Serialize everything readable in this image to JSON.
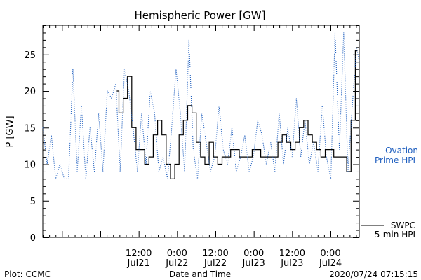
{
  "chart_data": {
    "type": "line",
    "title": "Hemispheric Power [GW]",
    "xlabel": "Date and Time",
    "ylabel": "P [GW]",
    "ylim": [
      0,
      29
    ],
    "xlim": [
      "2020-07-20 06:00",
      "2020-07-24 09:00"
    ],
    "yticks": [
      0,
      5,
      10,
      15,
      20,
      25
    ],
    "xticks": [
      {
        "t": "2020-07-21 12:00",
        "line1": "12:00",
        "line2": "Jul21"
      },
      {
        "t": "2020-07-22 00:00",
        "line1": "0:00",
        "line2": "Jul22"
      },
      {
        "t": "2020-07-22 12:00",
        "line1": "12:00",
        "line2": "Jul22"
      },
      {
        "t": "2020-07-23 00:00",
        "line1": "0:00",
        "line2": "Jul23"
      },
      {
        "t": "2020-07-23 12:00",
        "line1": "12:00",
        "line2": "Jul23"
      },
      {
        "t": "2020-07-24 00:00",
        "line1": "0:00",
        "line2": "Jul24"
      }
    ],
    "series": [
      {
        "name": "SWPC 5-min HPI",
        "color": "#000000",
        "style": "solid",
        "x": [
          "2020-07-21 05:08",
          "2020-07-21 06:29",
          "2020-07-21 07:49",
          "2020-07-21 09:10",
          "2020-07-21 10:31",
          "2020-07-21 11:51",
          "2020-07-21 13:12",
          "2020-07-21 14:33",
          "2020-07-21 15:53",
          "2020-07-21 17:14",
          "2020-07-21 18:35",
          "2020-07-21 19:55",
          "2020-07-21 21:16",
          "2020-07-21 22:37",
          "2020-07-21 23:58",
          "2020-07-22 01:18",
          "2020-07-22 02:39",
          "2020-07-22 04:00",
          "2020-07-22 05:20",
          "2020-07-22 06:41",
          "2020-07-22 08:02",
          "2020-07-22 09:22",
          "2020-07-22 10:43",
          "2020-07-22 12:04",
          "2020-07-22 13:24",
          "2020-07-22 14:45",
          "2020-07-22 16:06",
          "2020-07-22 17:26",
          "2020-07-22 18:47",
          "2020-07-22 20:08",
          "2020-07-22 21:28",
          "2020-07-22 22:49",
          "2020-07-23 00:10",
          "2020-07-23 01:31",
          "2020-07-23 02:51",
          "2020-07-23 04:12",
          "2020-07-23 05:33",
          "2020-07-23 06:53",
          "2020-07-23 08:14",
          "2020-07-23 09:35",
          "2020-07-23 10:55",
          "2020-07-23 12:16",
          "2020-07-23 13:37",
          "2020-07-23 14:57",
          "2020-07-23 16:18",
          "2020-07-23 17:39",
          "2020-07-23 18:59",
          "2020-07-23 20:20",
          "2020-07-23 21:41",
          "2020-07-23 23:01",
          "2020-07-24 00:22",
          "2020-07-24 01:43",
          "2020-07-24 03:04",
          "2020-07-24 04:24",
          "2020-07-24 05:45",
          "2020-07-24 07:06",
          "2020-07-24 08:26"
        ],
        "y": [
          20,
          17,
          19,
          22,
          15,
          12,
          12,
          10,
          11,
          14,
          16,
          14,
          10,
          8,
          10,
          14,
          16,
          18,
          17,
          13,
          11,
          10,
          13,
          11,
          10,
          11,
          11,
          12,
          12,
          11,
          11,
          11,
          12,
          12,
          11,
          11,
          11,
          11,
          13,
          14,
          13,
          12,
          13,
          15,
          16,
          14,
          13,
          12,
          11,
          12,
          12,
          11,
          11,
          11,
          9,
          16,
          25.5
        ]
      },
      {
        "name": "Ovation Prime HPI",
        "color": "#1f5fbf",
        "style": "dotted",
        "x": [
          "2020-07-20 06:00",
          "2020-07-20 07:21",
          "2020-07-20 08:41",
          "2020-07-20 10:02",
          "2020-07-20 11:23",
          "2020-07-20 12:43",
          "2020-07-20 14:04",
          "2020-07-20 15:25",
          "2020-07-20 16:45",
          "2020-07-20 18:06",
          "2020-07-20 19:27",
          "2020-07-20 20:47",
          "2020-07-20 22:08",
          "2020-07-20 23:29",
          "2020-07-21 00:49",
          "2020-07-21 02:10",
          "2020-07-21 03:31",
          "2020-07-21 04:51",
          "2020-07-21 06:12",
          "2020-07-21 07:33",
          "2020-07-21 08:53",
          "2020-07-21 10:14",
          "2020-07-21 11:35",
          "2020-07-21 12:55",
          "2020-07-21 14:16",
          "2020-07-21 15:37",
          "2020-07-21 16:58",
          "2020-07-21 18:18",
          "2020-07-21 19:39",
          "2020-07-21 21:00",
          "2020-07-21 22:20",
          "2020-07-21 23:41",
          "2020-07-22 01:02",
          "2020-07-22 02:22",
          "2020-07-22 03:43",
          "2020-07-22 05:04",
          "2020-07-22 06:24",
          "2020-07-22 07:45",
          "2020-07-22 09:06",
          "2020-07-22 10:26",
          "2020-07-22 11:47",
          "2020-07-22 13:08",
          "2020-07-22 14:28",
          "2020-07-22 15:49",
          "2020-07-22 17:10",
          "2020-07-22 18:31",
          "2020-07-22 19:51",
          "2020-07-22 21:12",
          "2020-07-22 22:33",
          "2020-07-22 23:53",
          "2020-07-23 01:14",
          "2020-07-23 02:35",
          "2020-07-23 03:55",
          "2020-07-23 05:16",
          "2020-07-23 06:37",
          "2020-07-23 07:57",
          "2020-07-23 09:18",
          "2020-07-23 10:39",
          "2020-07-23 11:59",
          "2020-07-23 13:20",
          "2020-07-23 14:41",
          "2020-07-23 16:01",
          "2020-07-23 17:22",
          "2020-07-23 18:43",
          "2020-07-23 20:04",
          "2020-07-23 21:24",
          "2020-07-23 22:45",
          "2020-07-24 00:06",
          "2020-07-24 01:26",
          "2020-07-24 02:47",
          "2020-07-24 04:08",
          "2020-07-24 05:28",
          "2020-07-24 06:49",
          "2020-07-24 08:10",
          "2020-07-24 09:00"
        ],
        "y": [
          15,
          10,
          14,
          8,
          10,
          8,
          8,
          23,
          9,
          18,
          8,
          15,
          9,
          17,
          9,
          20,
          19,
          21,
          9,
          23,
          20,
          15,
          9,
          17,
          10,
          20,
          17,
          9,
          11,
          8,
          15,
          23,
          17,
          9,
          27,
          12,
          8,
          17,
          13,
          9,
          11,
          18,
          12,
          10,
          15,
          9,
          11,
          14,
          9,
          11,
          16,
          14,
          10,
          13,
          9,
          17,
          10,
          15,
          11,
          19,
          11,
          16,
          10,
          13,
          9,
          18,
          11,
          8,
          28,
          12,
          28,
          9,
          18,
          26,
          24
        ]
      }
    ],
    "legend": [
      {
        "line1": "— Ovation",
        "line2": "Prime HPI",
        "color": "#1f5fbf"
      },
      {
        "line1": "SWPC",
        "line2": "5-min HPI",
        "color": "#000000"
      }
    ],
    "footer": {
      "left": "Plot: CCMC",
      "center": "Date and Time",
      "right": "2020/07/24 07:15:15"
    },
    "grid": false,
    "legend_position": "right"
  }
}
